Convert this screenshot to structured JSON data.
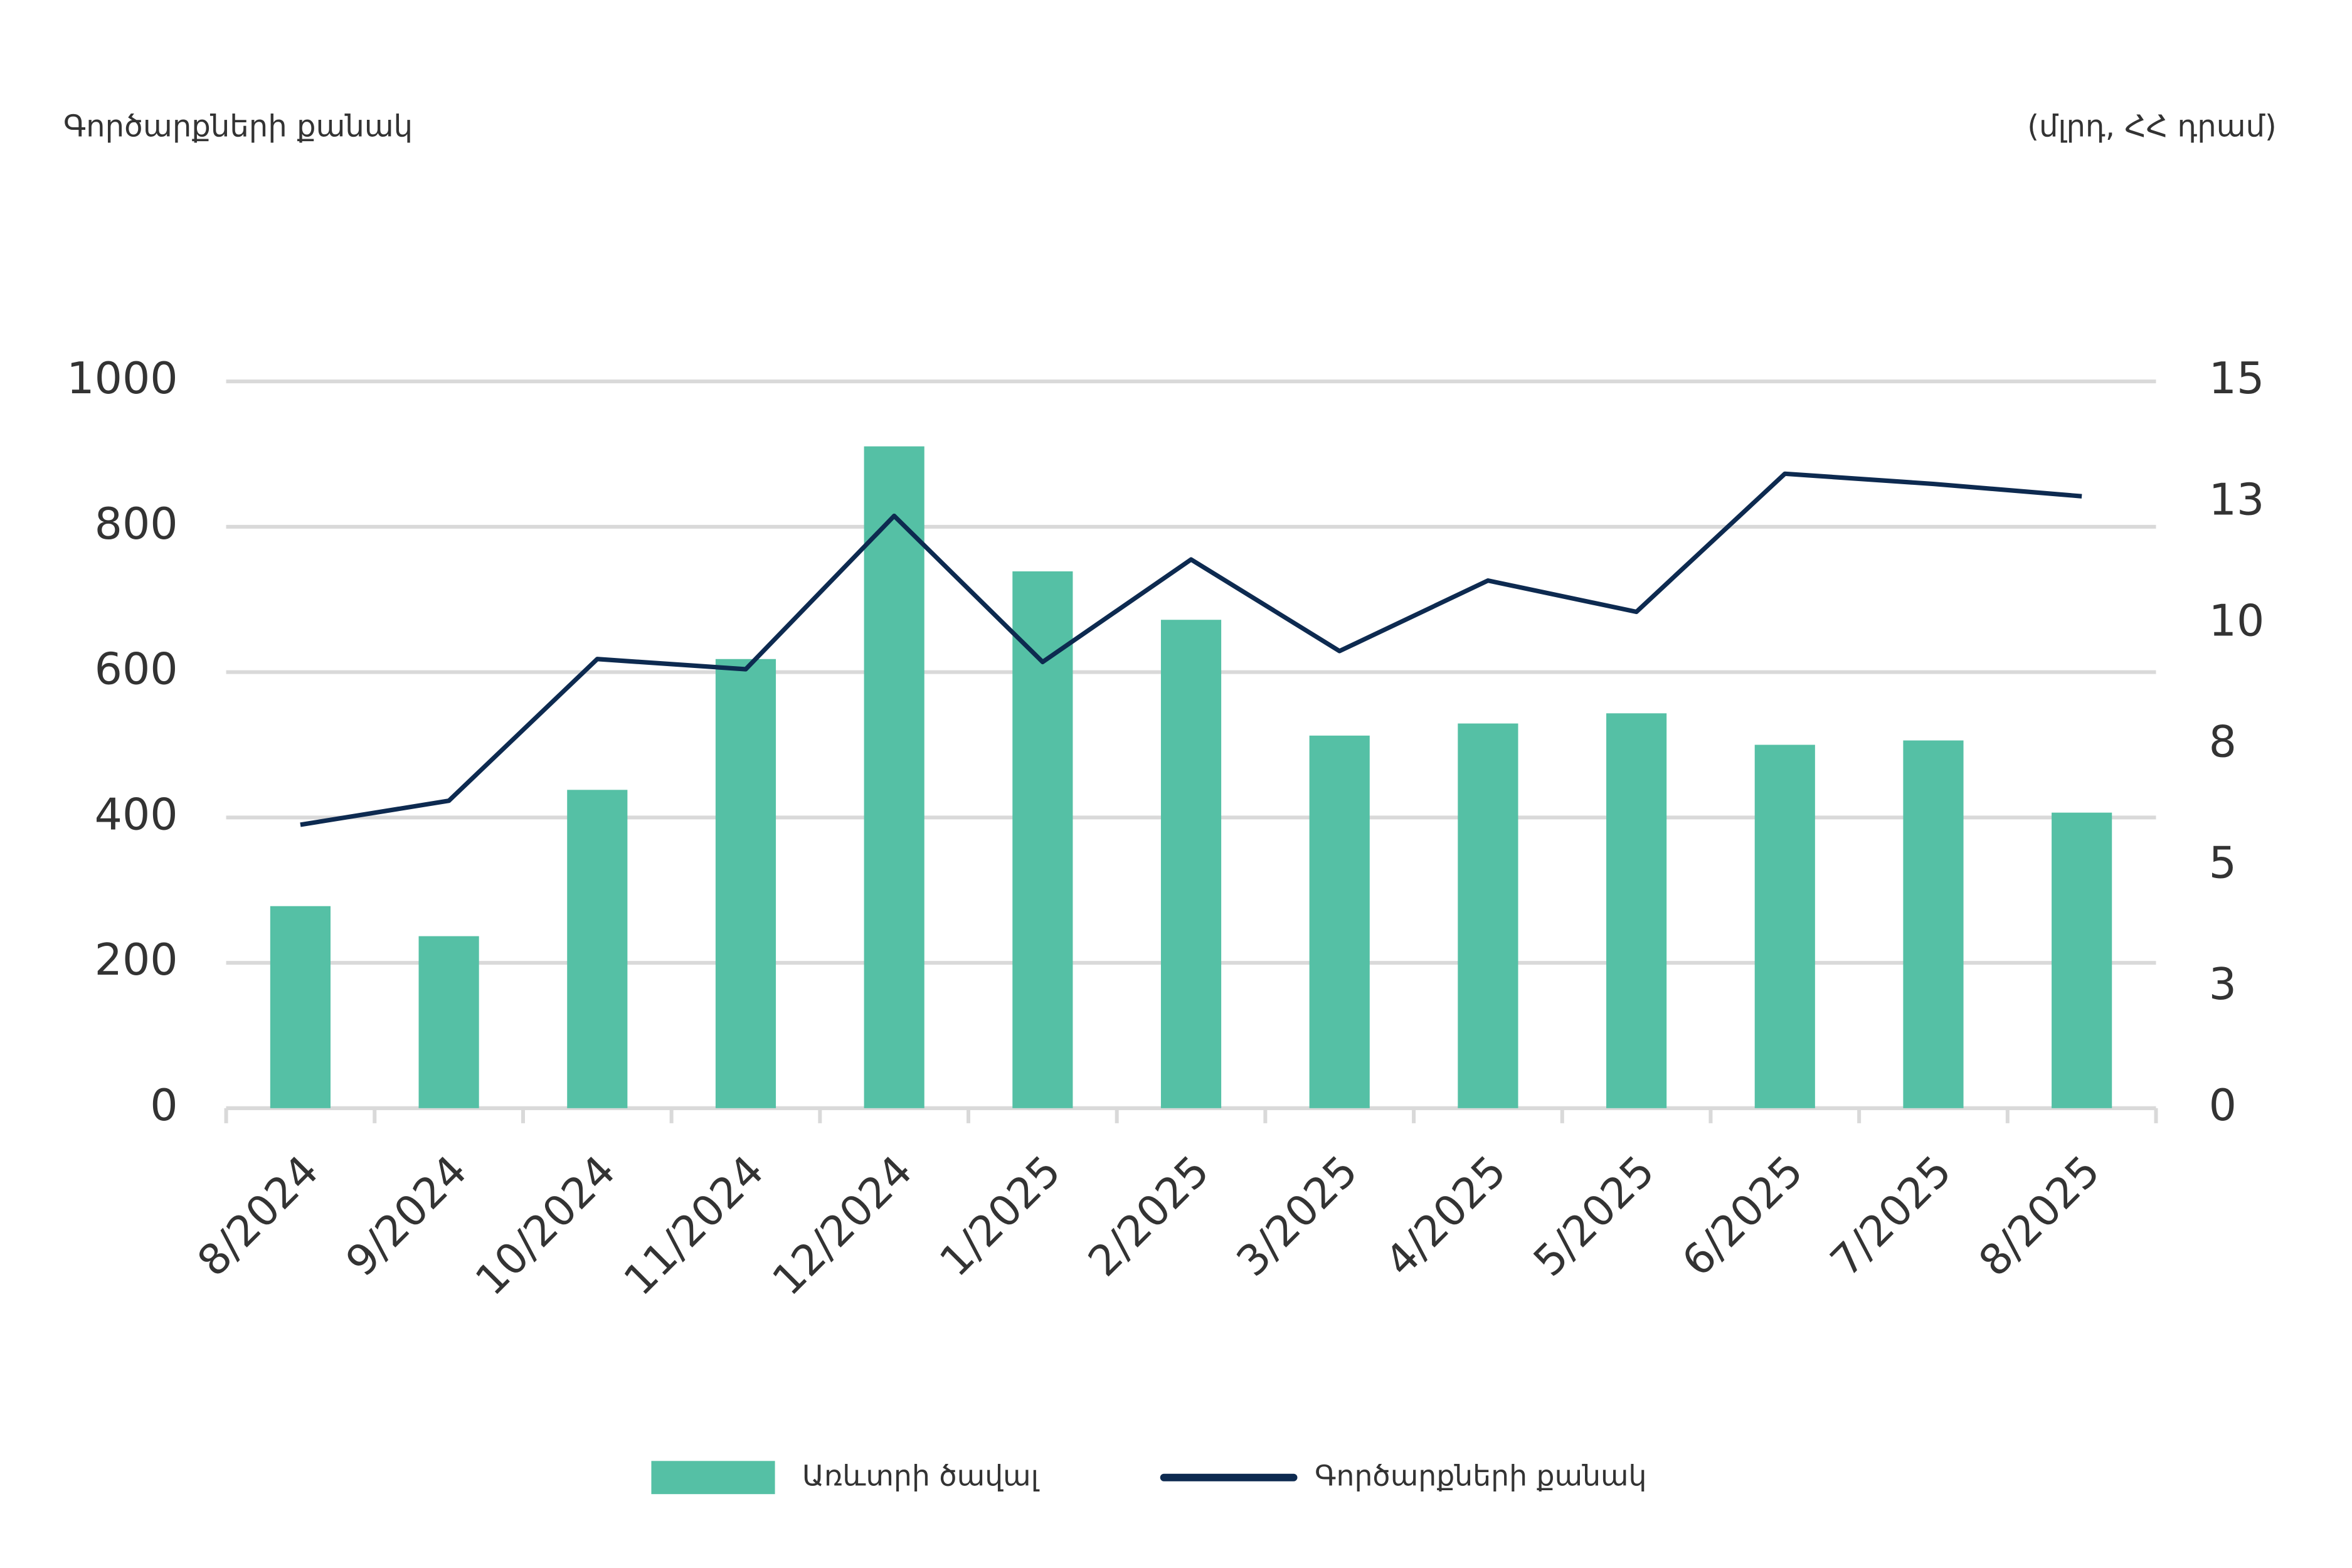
{
  "chart_data": {
    "type": "bar",
    "y_label": "Գործարքների քանակ",
    "y2_label": "(մլրդ, ՀՀ դրամ)",
    "categories": [
      "8/2024",
      "9/2024",
      "10/2024",
      "11/2024",
      "12/2024",
      "1/2025",
      "2/2025",
      "3/2025",
      "4/2025",
      "5/2025",
      "6/2025",
      "7/2025",
      "8/2025"
    ],
    "series": [
      {
        "name": "Առևտրի ծավալ",
        "type": "bar",
        "color": "#55c0a5",
        "axis": "y2",
        "values": [
          4.17,
          3.55,
          6.57,
          9.27,
          13.66,
          11.08,
          10.08,
          7.69,
          7.94,
          8.15,
          7.5,
          7.59,
          6.1
        ]
      },
      {
        "name": "Գործարքների քանակ",
        "type": "line",
        "color": "#0d2a50",
        "values": [
          390,
          423,
          618,
          604,
          815,
          614,
          755,
          629,
          726,
          683,
          873,
          859,
          842
        ]
      }
    ],
    "ylim": [
      0,
      1000
    ],
    "yticks": [
      0,
      200,
      400,
      600,
      800,
      1000
    ],
    "y2lim": [
      0,
      15
    ],
    "y2ticks": [
      0,
      {
        "value": 2.5,
        "label": "3"
      },
      5,
      {
        "value": 7.5,
        "label": "8"
      },
      10,
      {
        "value": 12.5,
        "label": "13"
      },
      15
    ],
    "grid": true,
    "legend": "bottom"
  }
}
